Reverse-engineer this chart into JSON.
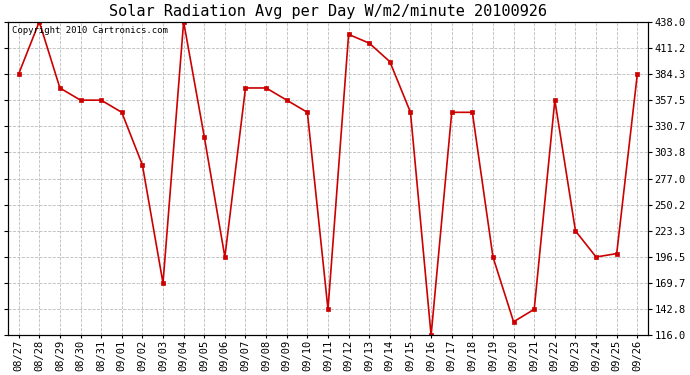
{
  "title": "Solar Radiation Avg per Day W/m2/minute 20100926",
  "copyright": "Copyright 2010 Cartronics.com",
  "labels": [
    "08/27",
    "08/28",
    "08/29",
    "08/30",
    "08/31",
    "09/01",
    "09/02",
    "09/03",
    "09/04",
    "09/05",
    "09/06",
    "09/07",
    "09/08",
    "09/09",
    "09/10",
    "09/11",
    "09/12",
    "09/13",
    "09/14",
    "09/15",
    "09/16",
    "09/17",
    "09/18",
    "09/19",
    "09/20",
    "09/21",
    "09/22",
    "09/23",
    "09/24",
    "09/25",
    "09/26"
  ],
  "values": [
    384.3,
    438.0,
    370.0,
    357.5,
    357.5,
    345.0,
    291.0,
    169.7,
    438.0,
    320.0,
    196.5,
    370.0,
    370.0,
    357.5,
    345.0,
    142.8,
    425.0,
    416.0,
    397.0,
    345.0,
    116.0,
    345.0,
    345.0,
    196.5,
    130.0,
    142.8,
    357.5,
    223.3,
    196.5,
    200.0,
    384.3
  ],
  "line_color": "#cc0000",
  "marker_color": "#cc0000",
  "bg_color": "#ffffff",
  "plot_bg_color": "#ffffff",
  "grid_color": "#bbbbbb",
  "ylim": [
    116.0,
    438.0
  ],
  "yticks": [
    116.0,
    142.8,
    169.7,
    196.5,
    223.3,
    250.2,
    277.0,
    303.8,
    330.7,
    357.5,
    384.3,
    411.2,
    438.0
  ],
  "title_fontsize": 11,
  "copyright_fontsize": 6.5,
  "tick_fontsize": 7.5
}
